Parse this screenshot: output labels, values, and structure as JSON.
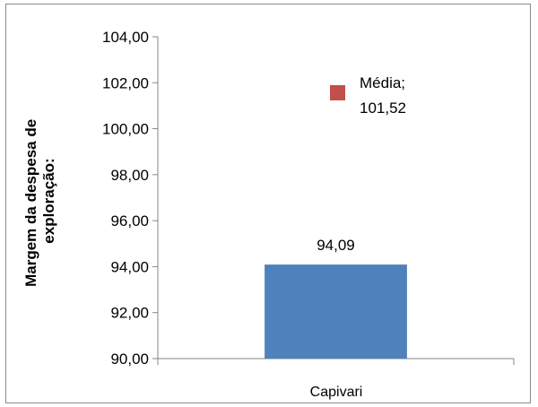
{
  "chart_data": {
    "type": "bar",
    "categories": [
      "Capivari"
    ],
    "series": [
      {
        "values": [
          94.09
        ],
        "color": "#4f81bd"
      }
    ],
    "value_labels": [
      "94,09"
    ],
    "ylabel_lines": [
      "Margem da despesa de",
      "exploração:"
    ],
    "ylim": [
      90,
      104
    ],
    "yticks": [
      90,
      92,
      94,
      96,
      98,
      100,
      102,
      104
    ],
    "ytick_labels": [
      "90,00",
      "92,00",
      "94,00",
      "96,00",
      "98,00",
      "100,00",
      "102,00",
      "104,00"
    ],
    "legend": {
      "marker_color": "#c0504d",
      "lines": [
        "Média;",
        "101,52"
      ]
    },
    "grid": false
  }
}
